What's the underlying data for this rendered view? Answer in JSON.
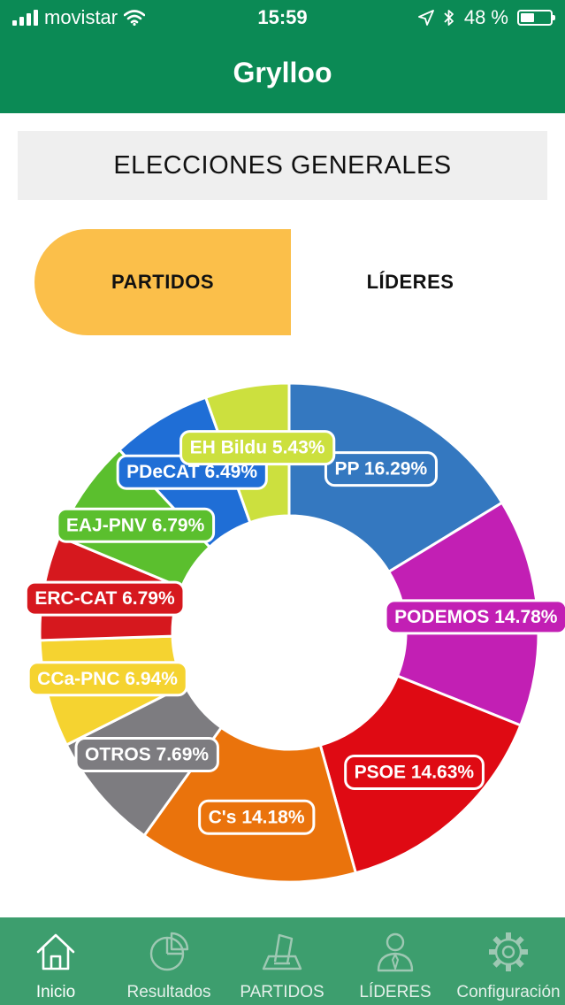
{
  "status_bar": {
    "carrier": "movistar",
    "time": "15:59",
    "battery": "48 %",
    "battery_level": 0.48,
    "icons": [
      "signal-icon",
      "wifi-icon",
      "location-arrow-icon",
      "bluetooth-icon",
      "battery-icon"
    ]
  },
  "header": {
    "title": "Grylloo"
  },
  "section": {
    "title": "ELECCIONES GENERALES"
  },
  "tabs": [
    {
      "label": "PARTIDOS",
      "selected": true
    },
    {
      "label": "LÍDERES",
      "selected": false
    }
  ],
  "chart_data": {
    "type": "pie",
    "categories": [
      "PP",
      "PODEMOS",
      "PSOE",
      "C's",
      "OTROS",
      "CCa-PNC",
      "ERC-CAT",
      "EAJ-PNV",
      "PDeCAT",
      "EH Bildu"
    ],
    "values": [
      16.29,
      14.78,
      14.63,
      14.18,
      7.69,
      6.94,
      6.79,
      6.79,
      6.49,
      5.43
    ],
    "labels": [
      "PP 16.29%",
      "PODEMOS 14.78%",
      "PSOE 14.63%",
      "C's 14.18%",
      "OTROS 7.69%",
      "CCa-PNC 6.94%",
      "ERC-CAT 6.79%",
      "EAJ-PNV 6.79%",
      "PDeCAT 6.49%",
      "EH Bildu 5.43%"
    ],
    "colors": [
      "#3478c0",
      "#c21fb4",
      "#df0a13",
      "#ea730c",
      "#7d7c80",
      "#f5d330",
      "#d6181e",
      "#5bbf2e",
      "#1f6ed6",
      "#cce03e"
    ],
    "legend": "none"
  },
  "nav": {
    "items": [
      {
        "label": "Inicio",
        "icon": "home-icon",
        "active": true
      },
      {
        "label": "Resultados",
        "icon": "pie-chart-icon",
        "active": false
      },
      {
        "label": "PARTIDOS",
        "icon": "ballot-box-icon",
        "active": false
      },
      {
        "label": "LÍDERES",
        "icon": "leader-person-icon",
        "active": false
      },
      {
        "label": "Configuración",
        "icon": "gear-icon",
        "active": false
      }
    ]
  }
}
